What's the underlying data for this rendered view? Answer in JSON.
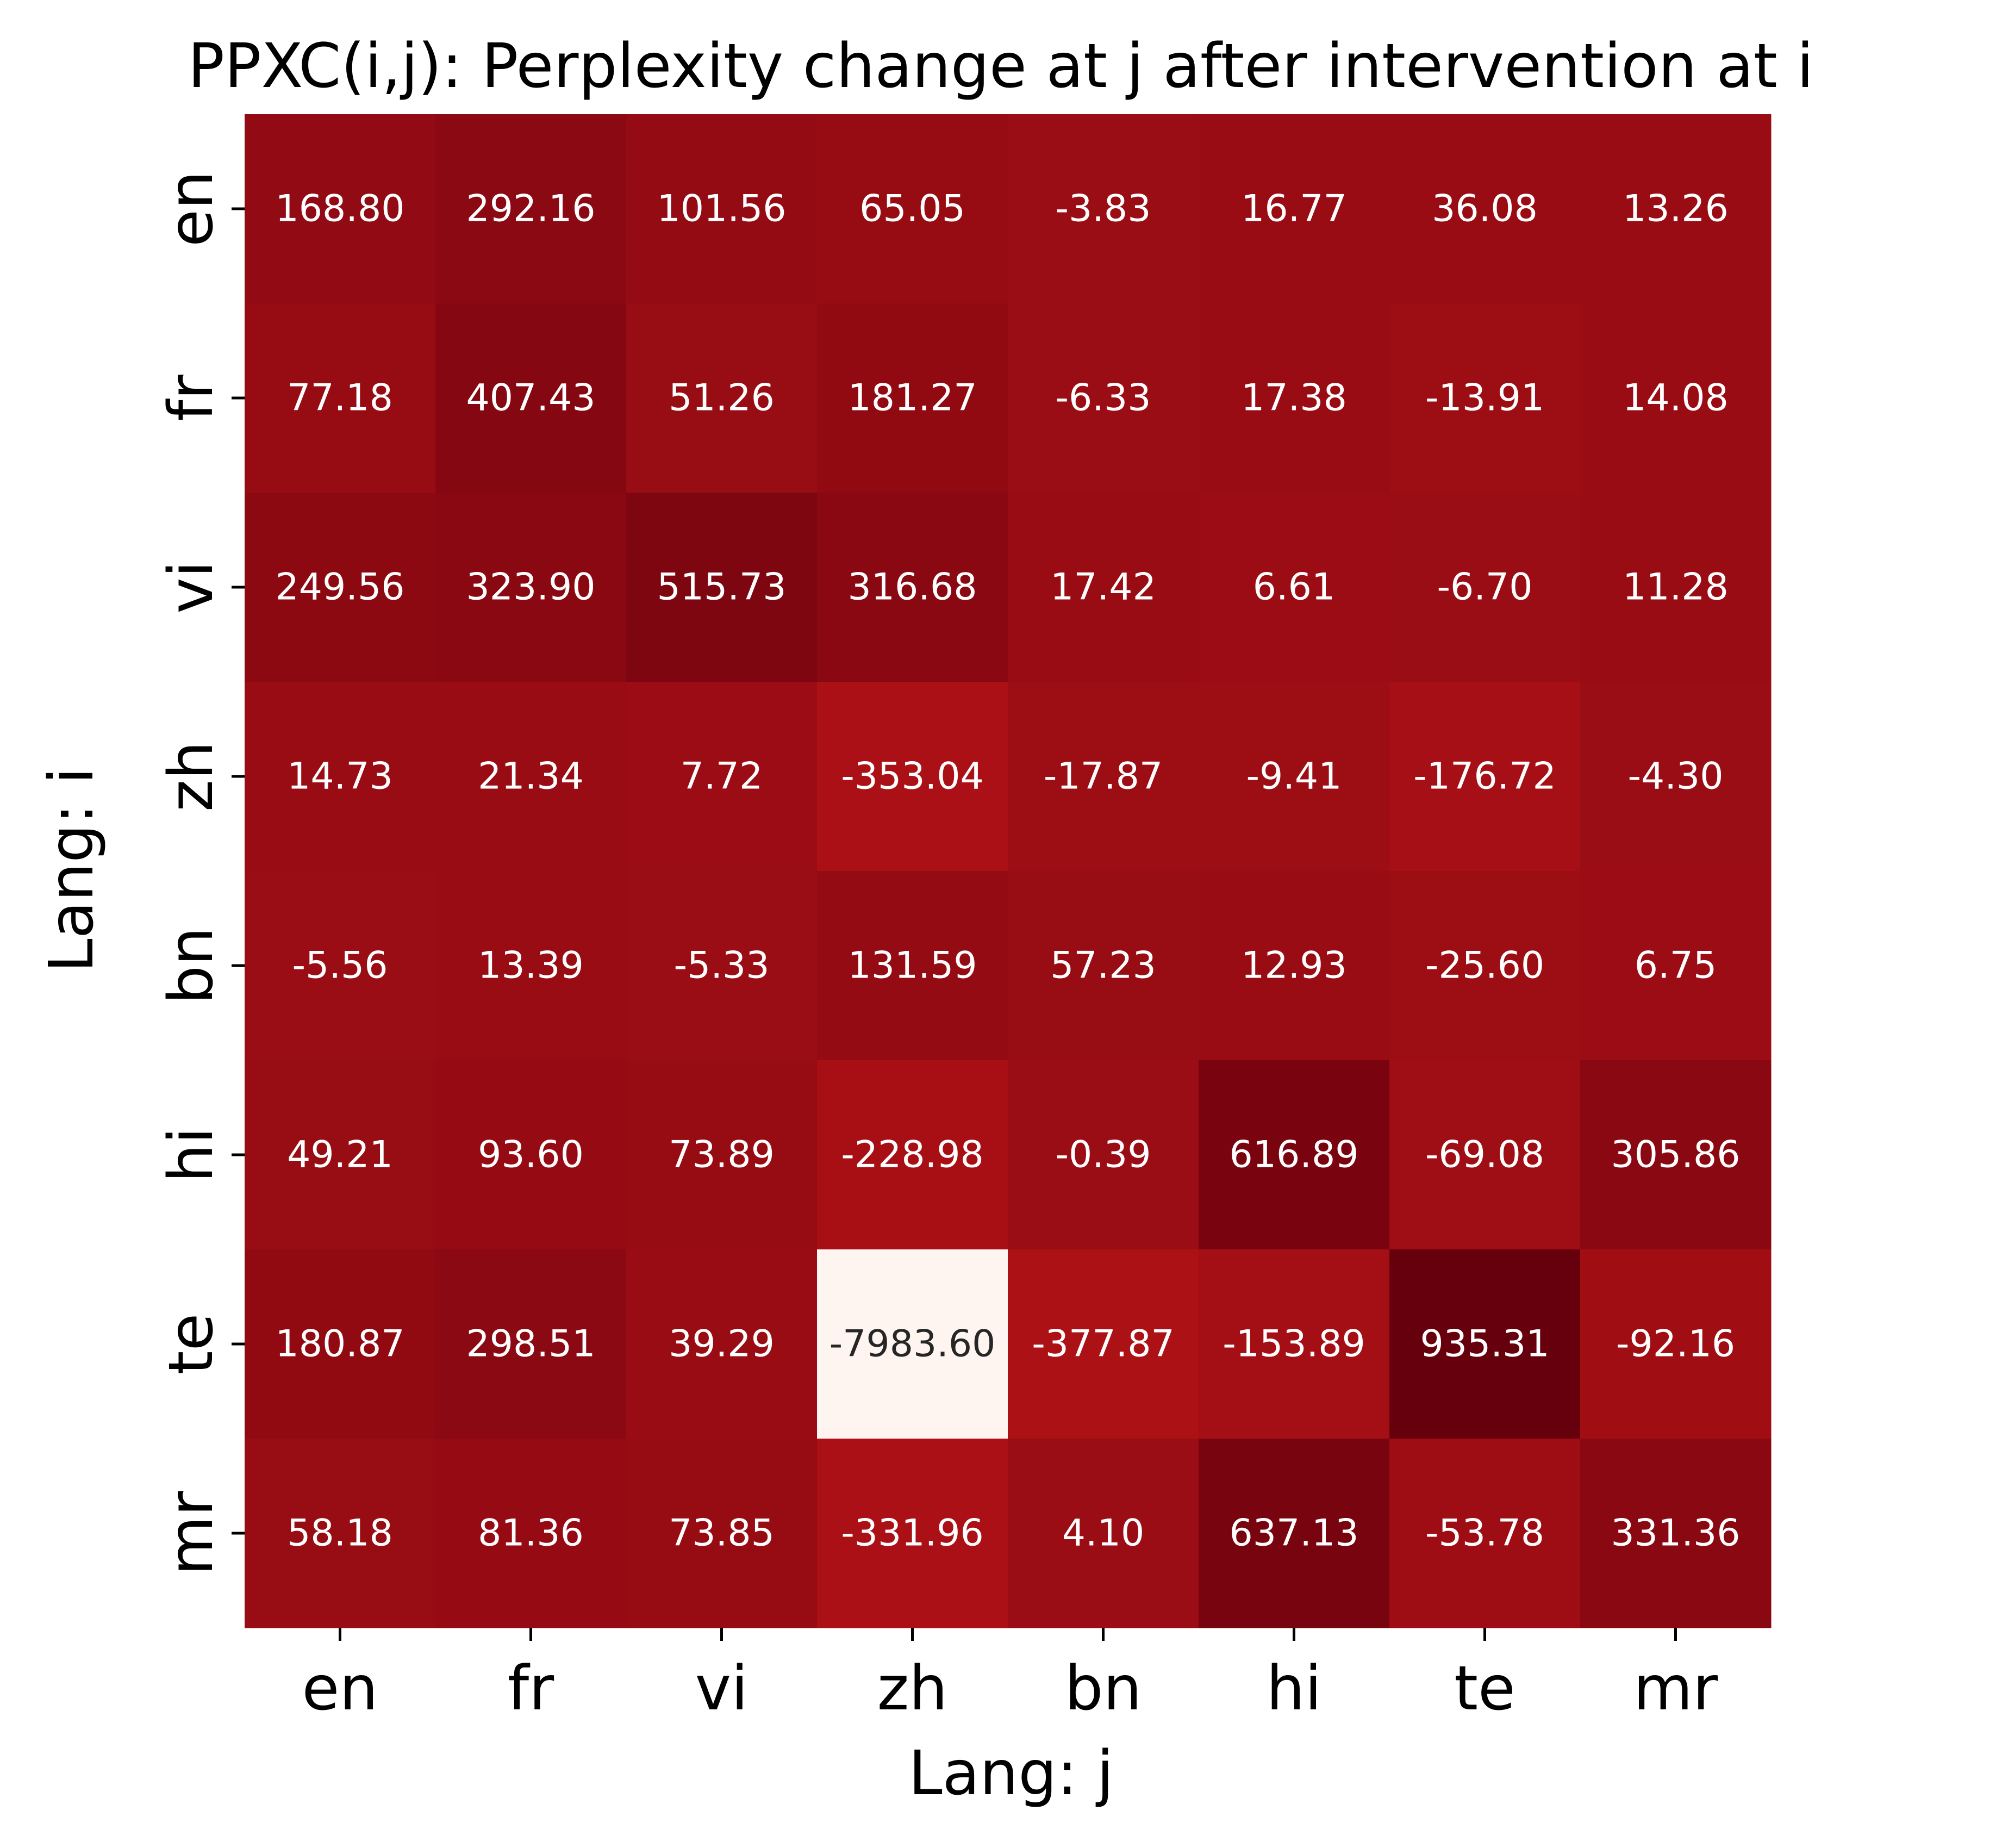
{
  "chart_data": {
    "type": "heatmap",
    "title": "PPXC(i,j): Perplexity change at j after intervention at i",
    "xlabel": "Lang: j",
    "ylabel": "Lang: i",
    "x_categories": [
      "en",
      "fr",
      "vi",
      "zh",
      "bn",
      "hi",
      "te",
      "mr"
    ],
    "y_categories": [
      "en",
      "fr",
      "vi",
      "zh",
      "bn",
      "hi",
      "te",
      "mr"
    ],
    "values": [
      [
        168.8,
        292.16,
        101.56,
        65.05,
        -3.83,
        16.77,
        36.08,
        13.26
      ],
      [
        77.18,
        407.43,
        51.26,
        181.27,
        -6.33,
        17.38,
        -13.91,
        14.08
      ],
      [
        249.56,
        323.9,
        515.73,
        316.68,
        17.42,
        6.61,
        -6.7,
        11.28
      ],
      [
        14.73,
        21.34,
        7.72,
        -353.04,
        -17.87,
        -9.41,
        -176.72,
        -4.3
      ],
      [
        -5.56,
        13.39,
        -5.33,
        131.59,
        57.23,
        12.93,
        -25.6,
        6.75
      ],
      [
        49.21,
        93.6,
        73.89,
        -228.98,
        -0.39,
        616.89,
        -69.08,
        305.86
      ],
      [
        180.87,
        298.51,
        39.29,
        -7983.6,
        -377.87,
        -153.89,
        935.31,
        -92.16
      ],
      [
        58.18,
        81.36,
        73.85,
        -331.96,
        4.1,
        637.13,
        -53.78,
        331.36
      ]
    ],
    "value_format": "%.2f",
    "colormap": "Reds",
    "color_range": [
      -7983.6,
      935.31
    ],
    "colorbar": false,
    "grid": false,
    "legend": "none"
  }
}
